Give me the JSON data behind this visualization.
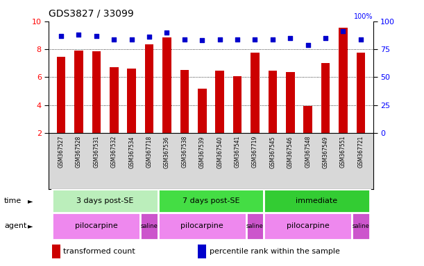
{
  "title": "GDS3827 / 33099",
  "samples": [
    "GSM367527",
    "GSM367528",
    "GSM367531",
    "GSM367532",
    "GSM367534",
    "GSM367718",
    "GSM367536",
    "GSM367538",
    "GSM367539",
    "GSM367540",
    "GSM367541",
    "GSM367719",
    "GSM367545",
    "GSM367546",
    "GSM367548",
    "GSM367549",
    "GSM367551",
    "GSM367721"
  ],
  "transformed_count": [
    7.45,
    7.9,
    7.85,
    6.7,
    6.6,
    8.35,
    8.85,
    6.5,
    5.15,
    6.45,
    6.05,
    7.75,
    6.45,
    6.35,
    3.95,
    7.0,
    9.55,
    7.75
  ],
  "percentile_rank": [
    87,
    88,
    87,
    84,
    84,
    86,
    90,
    84,
    83,
    84,
    84,
    84,
    84,
    85,
    79,
    85,
    91,
    84
  ],
  "ylim_left": [
    2,
    10
  ],
  "ylim_right": [
    0,
    100
  ],
  "yticks_left": [
    2,
    4,
    6,
    8,
    10
  ],
  "yticks_right": [
    0,
    25,
    50,
    75,
    100
  ],
  "bar_color": "#cc0000",
  "dot_color": "#0000cc",
  "gridline_y": [
    4,
    6,
    8
  ],
  "time_groups": [
    {
      "label": "3 days post-SE",
      "start": 0,
      "end": 6,
      "color": "#bbeebb"
    },
    {
      "label": "7 days post-SE",
      "start": 6,
      "end": 12,
      "color": "#44dd44"
    },
    {
      "label": "immediate",
      "start": 12,
      "end": 18,
      "color": "#33cc33"
    }
  ],
  "agent_groups": [
    {
      "label": "pilocarpine",
      "start": 0,
      "end": 5,
      "color": "#ee88ee"
    },
    {
      "label": "saline",
      "start": 5,
      "end": 6,
      "color": "#cc55cc"
    },
    {
      "label": "pilocarpine",
      "start": 6,
      "end": 11,
      "color": "#ee88ee"
    },
    {
      "label": "saline",
      "start": 11,
      "end": 12,
      "color": "#cc55cc"
    },
    {
      "label": "pilocarpine",
      "start": 12,
      "end": 17,
      "color": "#ee88ee"
    },
    {
      "label": "saline",
      "start": 17,
      "end": 18,
      "color": "#cc55cc"
    }
  ],
  "legend_items": [
    {
      "label": "transformed count",
      "color": "#cc0000"
    },
    {
      "label": "percentile rank within the sample",
      "color": "#0000cc"
    }
  ],
  "sample_label_bg": "#d8d8d8",
  "bar_width": 0.5,
  "xlabel_fontsize": 5.5,
  "ylabel_fontsize": 8,
  "title_fontsize": 10,
  "annotation_fontsize": 8,
  "legend_fontsize": 8
}
